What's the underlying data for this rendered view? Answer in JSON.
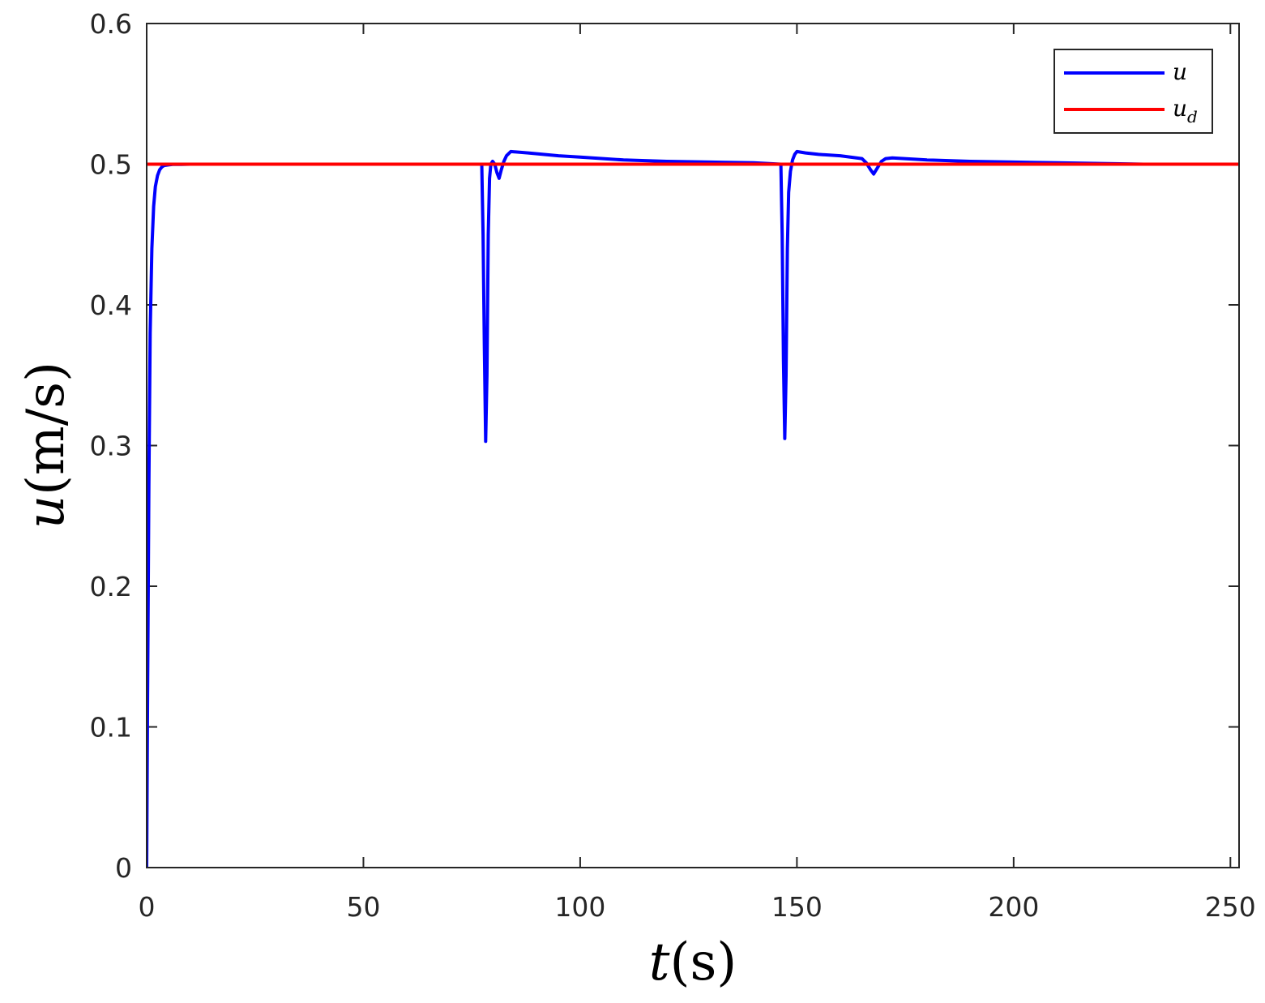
{
  "chart_data": {
    "type": "line",
    "xlabel": {
      "var": "t",
      "unit": "(s)"
    },
    "ylabel": {
      "var": "u",
      "unit": "(m/s)"
    },
    "xlim": [
      0,
      252
    ],
    "ylim": [
      0,
      0.6
    ],
    "xticks": [
      0,
      50,
      100,
      150,
      200,
      250
    ],
    "yticks": [
      0,
      0.1,
      0.2,
      0.3,
      0.4,
      0.5,
      0.6
    ],
    "xtick_labels": [
      "0",
      "50",
      "100",
      "150",
      "200",
      "250"
    ],
    "ytick_labels": [
      "0",
      "0.1",
      "0.2",
      "0.3",
      "0.4",
      "0.5",
      "0.6"
    ],
    "grid": false,
    "legend": {
      "placement": "top-right",
      "entries": [
        {
          "var": "u",
          "sub": ""
        },
        {
          "var": "u",
          "sub": "d"
        }
      ]
    },
    "series": [
      {
        "color": "#0000ff",
        "x": [
          0,
          0.2,
          0.5,
          0.8,
          1.2,
          1.6,
          2,
          2.5,
          3,
          3.5,
          4,
          5,
          6,
          8,
          10,
          20,
          40,
          60,
          77.3,
          77.6,
          77.9,
          78.2,
          78.5,
          78.8,
          79.1,
          79.4,
          79.8,
          80.3,
          80.8,
          81.3,
          81.8,
          82.4,
          83,
          84,
          88,
          95,
          100,
          110,
          120,
          130,
          140,
          146.3,
          146.6,
          146.9,
          147.2,
          147.5,
          147.8,
          148.1,
          148.5,
          149,
          149.5,
          150,
          152,
          155,
          160,
          165,
          166,
          167,
          167.7,
          168.5,
          169.5,
          170.5,
          172,
          180,
          190,
          200,
          210,
          220,
          230,
          240,
          252
        ],
        "y": [
          0,
          0.12,
          0.27,
          0.38,
          0.44,
          0.47,
          0.484,
          0.492,
          0.496,
          0.498,
          0.499,
          0.4995,
          0.4998,
          0.4999,
          0.5,
          0.5,
          0.5,
          0.5,
          0.5,
          0.45,
          0.37,
          0.303,
          0.35,
          0.45,
          0.49,
          0.5,
          0.502,
          0.5,
          0.494,
          0.49,
          0.496,
          0.502,
          0.506,
          0.509,
          0.508,
          0.506,
          0.505,
          0.503,
          0.502,
          0.5015,
          0.501,
          0.5,
          0.45,
          0.36,
          0.305,
          0.35,
          0.44,
          0.48,
          0.495,
          0.503,
          0.507,
          0.509,
          0.508,
          0.507,
          0.506,
          0.504,
          0.501,
          0.496,
          0.493,
          0.497,
          0.502,
          0.504,
          0.5045,
          0.503,
          0.502,
          0.5015,
          0.501,
          0.5005,
          0.5,
          0.5,
          0.5
        ]
      },
      {
        "color": "#ff0000",
        "x": [
          0,
          252
        ],
        "y": [
          0.5,
          0.5
        ]
      }
    ]
  }
}
